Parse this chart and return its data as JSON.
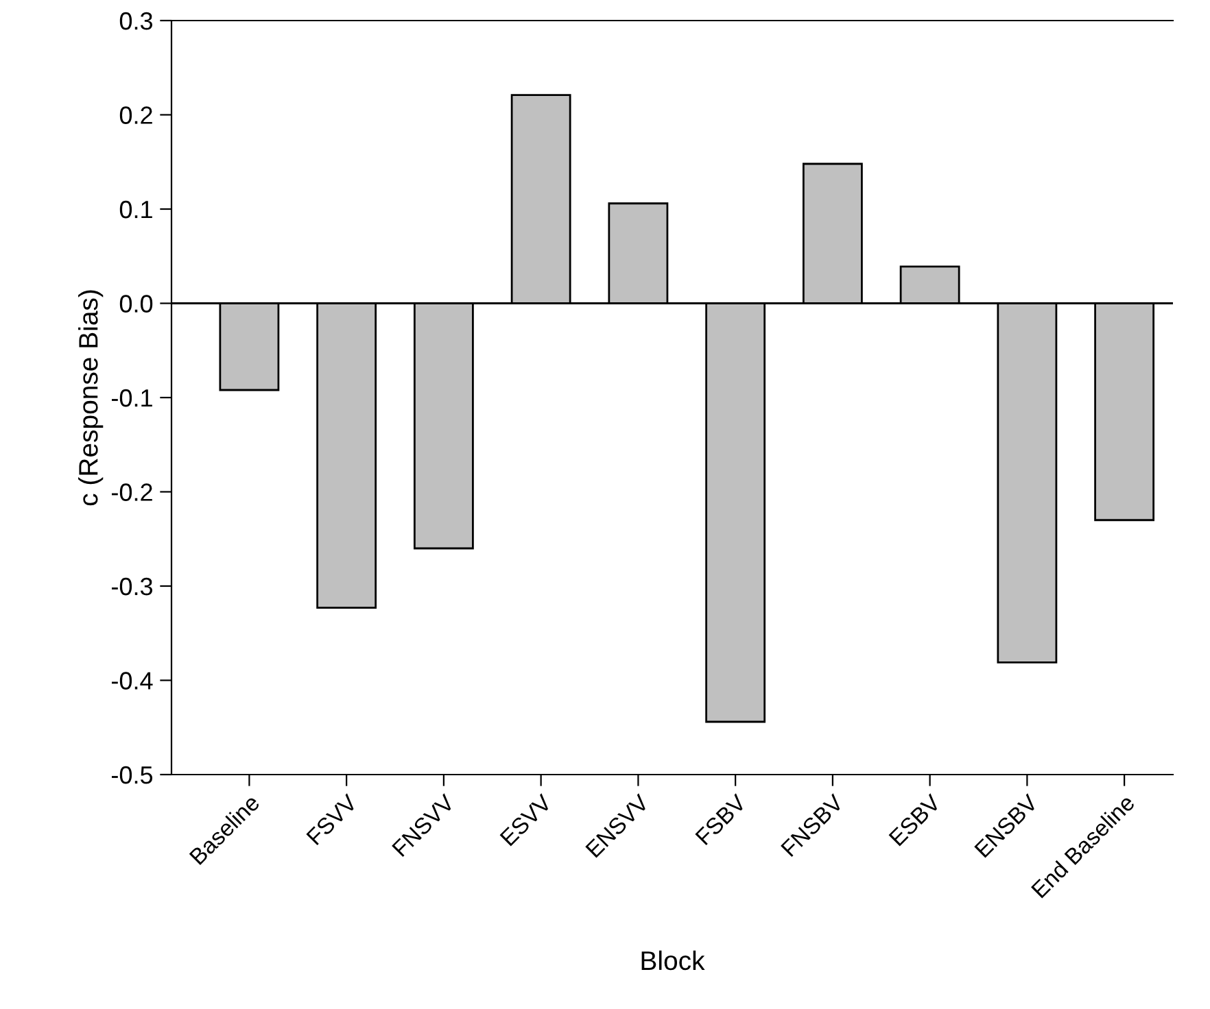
{
  "chart_data": {
    "type": "bar",
    "xlabel": "Block",
    "ylabel": "c (Response Bias)",
    "categories": [
      "Baseline",
      "FSVV",
      "FNSVV",
      "ESVV",
      "ENSVV",
      "FSBV",
      "FNSBV",
      "ESBV",
      "ENSBV",
      "End Baseline"
    ],
    "values": [
      -0.092,
      -0.323,
      -0.26,
      0.221,
      0.106,
      -0.444,
      0.148,
      0.039,
      -0.381,
      -0.23
    ],
    "color": "#c0c0c0",
    "ylim": [
      -0.5,
      0.3
    ],
    "yticks": [
      {
        "value": -0.5,
        "label": "-0.5"
      },
      {
        "value": -0.4,
        "label": "-0.4"
      },
      {
        "value": -0.3,
        "label": "-0.3"
      },
      {
        "value": -0.2,
        "label": "-0.2"
      },
      {
        "value": -0.1,
        "label": "-0.1"
      },
      {
        "value": 0,
        "label": "0.0"
      },
      {
        "value": 0.1,
        "label": "0.1"
      },
      {
        "value": 0.2,
        "label": "0.2"
      },
      {
        "value": 0.3,
        "label": "0.3"
      }
    ],
    "ref_lines": [
      {
        "axis": "y",
        "value": 0,
        "color": "#000000"
      }
    ],
    "grid": false
  }
}
